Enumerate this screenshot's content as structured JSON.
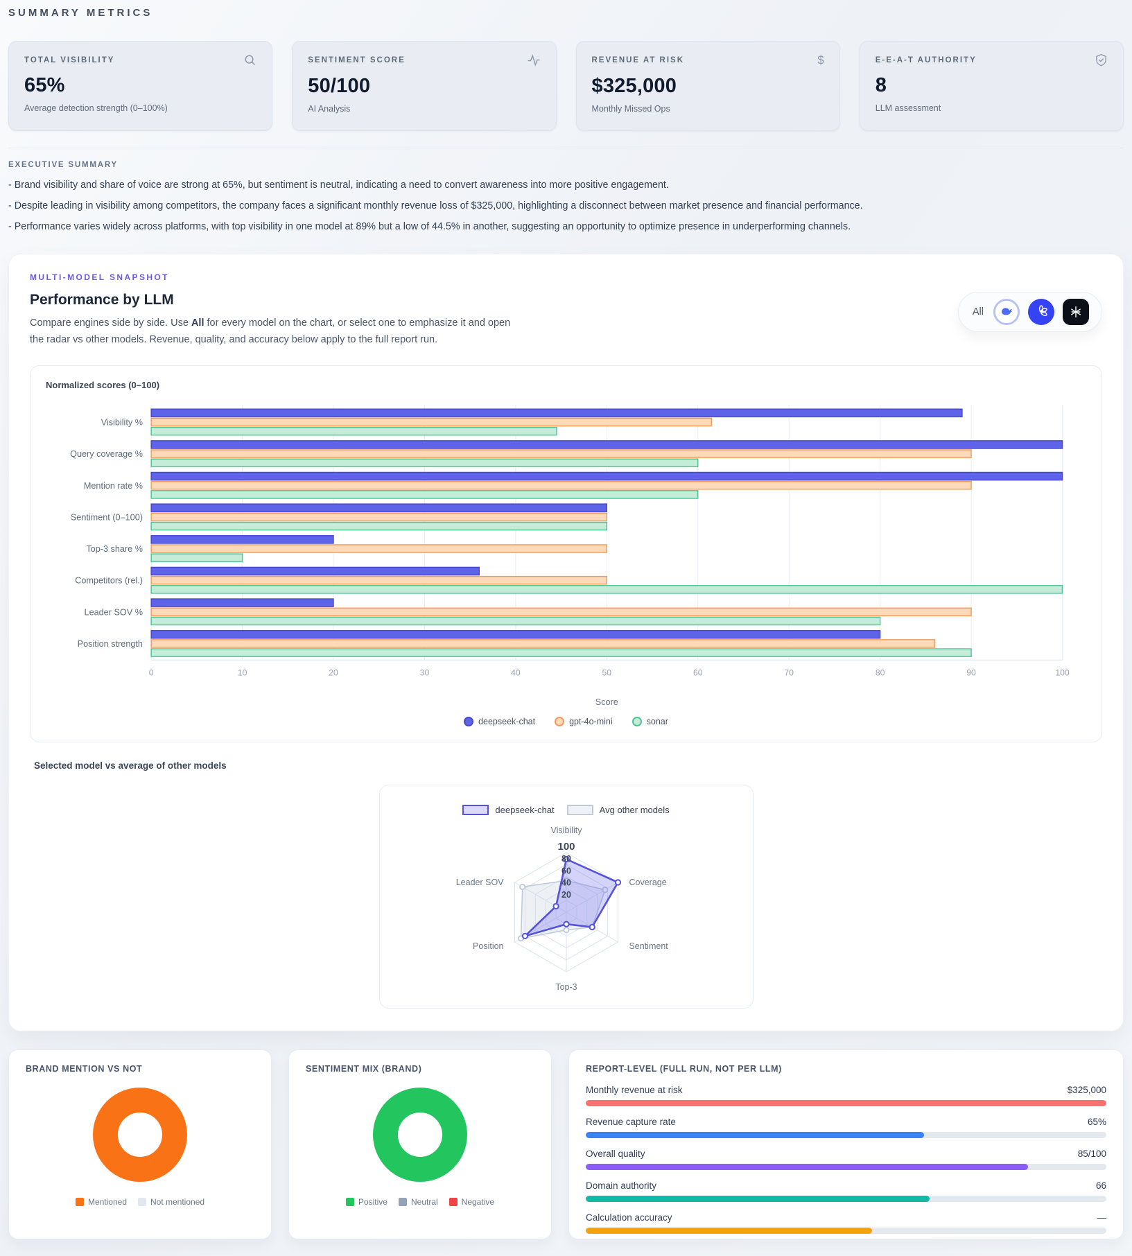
{
  "page": {
    "title": "SUMMARY METRICS"
  },
  "summary_cards": [
    {
      "label": "TOTAL VISIBILITY",
      "value": "65%",
      "sub": "Average detection strength (0–100%)",
      "icon": "search-icon"
    },
    {
      "label": "SENTIMENT SCORE",
      "value": "50/100",
      "sub": "AI Analysis",
      "icon": "activity-icon"
    },
    {
      "label": "REVENUE AT RISK",
      "value": "$325,000",
      "sub": "Monthly Missed Ops",
      "icon": "dollar-icon"
    },
    {
      "label": "E-E-A-T AUTHORITY",
      "value": "8",
      "sub": "LLM assessment",
      "icon": "shield-check-icon"
    }
  ],
  "executive_summary": {
    "label": "EXECUTIVE SUMMARY",
    "bullets": [
      "- Brand visibility and share of voice are strong at 65%, but sentiment is neutral, indicating a need to convert awareness into more positive engagement.",
      "- Despite leading in visibility among competitors, the company faces a significant monthly revenue loss of $325,000, highlighting a disconnect between market presence and financial performance.",
      "- Performance varies widely across platforms, with top visibility in one model at 89% but a low of 44.5% in another, suggesting an opportunity to optimize presence in underperforming channels."
    ]
  },
  "snapshot": {
    "eyebrow": "MULTI-MODEL SNAPSHOT",
    "title": "Performance by LLM",
    "description": {
      "pre": "Compare engines side by side. Use ",
      "bold": "All",
      "post": " for every model on the chart, or select one to emphasize it and open the radar vs other models. Revenue, quality, and accuracy below apply to the full report run."
    },
    "selector": {
      "all_label": "All",
      "models": [
        "deepseek-chat",
        "gpt-4o-mini",
        "sonar"
      ]
    },
    "radar_section_label": "Selected model vs average of other models"
  },
  "chart_data": [
    {
      "type": "bar",
      "orientation": "horizontal",
      "title": "Normalized scores (0–100)",
      "categories": [
        "Visibility %",
        "Query coverage %",
        "Mention rate %",
        "Sentiment (0–100)",
        "Top-3 share %",
        "Competitors (rel.)",
        "Leader SOV %",
        "Position strength"
      ],
      "series": [
        {
          "name": "deepseek-chat",
          "fill": "#5f63e8",
          "border": "#4649d2",
          "values": [
            89,
            100,
            100,
            50,
            20,
            36,
            20,
            80
          ]
        },
        {
          "name": "gpt-4o-mini",
          "fill": "#fcd9b8",
          "border": "#f79a59",
          "values": [
            61.5,
            90,
            90,
            50,
            50,
            50,
            90,
            86
          ]
        },
        {
          "name": "sonar",
          "fill": "#c4ecd9",
          "border": "#4cc494",
          "values": [
            44.5,
            60,
            60,
            50,
            10,
            100,
            80,
            90
          ]
        }
      ],
      "xlabel": "Score",
      "xlim": [
        0,
        100
      ],
      "xticks": [
        0,
        10,
        20,
        30,
        40,
        50,
        60,
        70,
        80,
        90,
        100
      ],
      "grid": true,
      "legend_position": "bottom"
    },
    {
      "type": "radar",
      "axes": [
        "Visibility",
        "Coverage",
        "Sentiment",
        "Top-3",
        "Position",
        "Leader SOV"
      ],
      "ticks": [
        20,
        40,
        60,
        80,
        100
      ],
      "rlim": [
        0,
        100
      ],
      "series": [
        {
          "name": "deepseek-chat",
          "values": [
            89,
            100,
            50,
            20,
            80,
            20
          ],
          "stroke": "#5552d9",
          "fill": "rgba(99,102,241,0.28)",
          "stroke_width": 2.6,
          "swatch_fill": "#dbd8f8"
        },
        {
          "name": "Avg other models",
          "values": [
            53,
            75,
            50,
            30,
            88,
            85
          ],
          "stroke": "#c0cbda",
          "fill": "rgba(203,213,225,0.35)",
          "stroke_width": 1.6,
          "swatch_fill": "#eef2f7"
        }
      ],
      "legend_position": "top"
    },
    {
      "type": "pie",
      "title": "BRAND MENTION VS NOT",
      "labels": [
        "Mentioned",
        "Not mentioned"
      ],
      "values": [
        100,
        0
      ],
      "colors": [
        "#f97316",
        "#e2e8f0"
      ]
    },
    {
      "type": "pie",
      "title": "SENTIMENT MIX (BRAND)",
      "labels": [
        "Positive",
        "Neutral",
        "Negative"
      ],
      "values": [
        100,
        0,
        0
      ],
      "colors": [
        "#22c55e",
        "#94a3b8",
        "#ef4444"
      ]
    },
    {
      "type": "bar",
      "variant": "progress-list",
      "title": "REPORT-LEVEL (FULL RUN, NOT PER LLM)",
      "rows": [
        {
          "label": "Monthly revenue at risk",
          "value": "$325,000",
          "pct": 100,
          "color": "#f87171"
        },
        {
          "label": "Revenue capture rate",
          "value": "65%",
          "pct": 65,
          "color": "#3b82f6"
        },
        {
          "label": "Overall quality",
          "value": "85/100",
          "pct": 85,
          "color": "#8b5cf6"
        },
        {
          "label": "Domain authority",
          "value": "66",
          "pct": 66,
          "color": "#14b8a6"
        },
        {
          "label": "Calculation accuracy",
          "value": "—",
          "pct": 55,
          "color": "#f5a30b"
        }
      ]
    }
  ]
}
